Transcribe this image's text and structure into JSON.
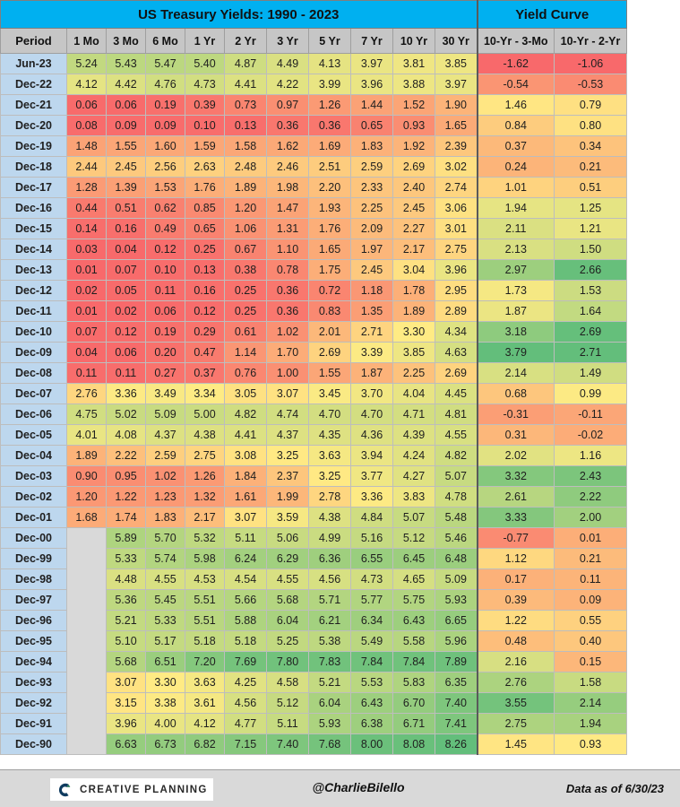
{
  "header": {
    "title": "US Treasury Yields: 1990 - 2023",
    "curve_title": "Yield Curve"
  },
  "columns": [
    "Period",
    "1 Mo",
    "3 Mo",
    "6 Mo",
    "1 Yr",
    "2 Yr",
    "3 Yr",
    "5 Yr",
    "7 Yr",
    "10 Yr",
    "30 Yr",
    "10-Yr - 3-Mo",
    "10-Yr - 2-Yr"
  ],
  "chart_data": {
    "type": "table",
    "title": "US Treasury Yields: 1990 - 2023",
    "columns": [
      "Period",
      "1 Mo",
      "3 Mo",
      "6 Mo",
      "1 Yr",
      "2 Yr",
      "3 Yr",
      "5 Yr",
      "7 Yr",
      "10 Yr",
      "30 Yr",
      "10-Yr - 3-Mo",
      "10-Yr - 2-Yr"
    ],
    "rows": [
      [
        "Jun-23",
        "5.24",
        "5.43",
        "5.47",
        "5.40",
        "4.87",
        "4.49",
        "4.13",
        "3.97",
        "3.81",
        "3.85",
        "-1.62",
        "-1.06"
      ],
      [
        "Dec-22",
        "4.12",
        "4.42",
        "4.76",
        "4.73",
        "4.41",
        "4.22",
        "3.99",
        "3.96",
        "3.88",
        "3.97",
        "-0.54",
        "-0.53"
      ],
      [
        "Dec-21",
        "0.06",
        "0.06",
        "0.19",
        "0.39",
        "0.73",
        "0.97",
        "1.26",
        "1.44",
        "1.52",
        "1.90",
        "1.46",
        "0.79"
      ],
      [
        "Dec-20",
        "0.08",
        "0.09",
        "0.09",
        "0.10",
        "0.13",
        "0.36",
        "0.36",
        "0.65",
        "0.93",
        "1.65",
        "0.84",
        "0.80"
      ],
      [
        "Dec-19",
        "1.48",
        "1.55",
        "1.60",
        "1.59",
        "1.58",
        "1.62",
        "1.69",
        "1.83",
        "1.92",
        "2.39",
        "0.37",
        "0.34"
      ],
      [
        "Dec-18",
        "2.44",
        "2.45",
        "2.56",
        "2.63",
        "2.48",
        "2.46",
        "2.51",
        "2.59",
        "2.69",
        "3.02",
        "0.24",
        "0.21"
      ],
      [
        "Dec-17",
        "1.28",
        "1.39",
        "1.53",
        "1.76",
        "1.89",
        "1.98",
        "2.20",
        "2.33",
        "2.40",
        "2.74",
        "1.01",
        "0.51"
      ],
      [
        "Dec-16",
        "0.44",
        "0.51",
        "0.62",
        "0.85",
        "1.20",
        "1.47",
        "1.93",
        "2.25",
        "2.45",
        "3.06",
        "1.94",
        "1.25"
      ],
      [
        "Dec-15",
        "0.14",
        "0.16",
        "0.49",
        "0.65",
        "1.06",
        "1.31",
        "1.76",
        "2.09",
        "2.27",
        "3.01",
        "2.11",
        "1.21"
      ],
      [
        "Dec-14",
        "0.03",
        "0.04",
        "0.12",
        "0.25",
        "0.67",
        "1.10",
        "1.65",
        "1.97",
        "2.17",
        "2.75",
        "2.13",
        "1.50"
      ],
      [
        "Dec-13",
        "0.01",
        "0.07",
        "0.10",
        "0.13",
        "0.38",
        "0.78",
        "1.75",
        "2.45",
        "3.04",
        "3.96",
        "2.97",
        "2.66"
      ],
      [
        "Dec-12",
        "0.02",
        "0.05",
        "0.11",
        "0.16",
        "0.25",
        "0.36",
        "0.72",
        "1.18",
        "1.78",
        "2.95",
        "1.73",
        "1.53"
      ],
      [
        "Dec-11",
        "0.01",
        "0.02",
        "0.06",
        "0.12",
        "0.25",
        "0.36",
        "0.83",
        "1.35",
        "1.89",
        "2.89",
        "1.87",
        "1.64"
      ],
      [
        "Dec-10",
        "0.07",
        "0.12",
        "0.19",
        "0.29",
        "0.61",
        "1.02",
        "2.01",
        "2.71",
        "3.30",
        "4.34",
        "3.18",
        "2.69"
      ],
      [
        "Dec-09",
        "0.04",
        "0.06",
        "0.20",
        "0.47",
        "1.14",
        "1.70",
        "2.69",
        "3.39",
        "3.85",
        "4.63",
        "3.79",
        "2.71"
      ],
      [
        "Dec-08",
        "0.11",
        "0.11",
        "0.27",
        "0.37",
        "0.76",
        "1.00",
        "1.55",
        "1.87",
        "2.25",
        "2.69",
        "2.14",
        "1.49"
      ],
      [
        "Dec-07",
        "2.76",
        "3.36",
        "3.49",
        "3.34",
        "3.05",
        "3.07",
        "3.45",
        "3.70",
        "4.04",
        "4.45",
        "0.68",
        "0.99"
      ],
      [
        "Dec-06",
        "4.75",
        "5.02",
        "5.09",
        "5.00",
        "4.82",
        "4.74",
        "4.70",
        "4.70",
        "4.71",
        "4.81",
        "-0.31",
        "-0.11"
      ],
      [
        "Dec-05",
        "4.01",
        "4.08",
        "4.37",
        "4.38",
        "4.41",
        "4.37",
        "4.35",
        "4.36",
        "4.39",
        "4.55",
        "0.31",
        "-0.02"
      ],
      [
        "Dec-04",
        "1.89",
        "2.22",
        "2.59",
        "2.75",
        "3.08",
        "3.25",
        "3.63",
        "3.94",
        "4.24",
        "4.82",
        "2.02",
        "1.16"
      ],
      [
        "Dec-03",
        "0.90",
        "0.95",
        "1.02",
        "1.26",
        "1.84",
        "2.37",
        "3.25",
        "3.77",
        "4.27",
        "5.07",
        "3.32",
        "2.43"
      ],
      [
        "Dec-02",
        "1.20",
        "1.22",
        "1.23",
        "1.32",
        "1.61",
        "1.99",
        "2.78",
        "3.36",
        "3.83",
        "4.78",
        "2.61",
        "2.22"
      ],
      [
        "Dec-01",
        "1.68",
        "1.74",
        "1.83",
        "2.17",
        "3.07",
        "3.59",
        "4.38",
        "4.84",
        "5.07",
        "5.48",
        "3.33",
        "2.00"
      ],
      [
        "Dec-00",
        "",
        "5.89",
        "5.70",
        "5.32",
        "5.11",
        "5.06",
        "4.99",
        "5.16",
        "5.12",
        "5.46",
        "-0.77",
        "0.01"
      ],
      [
        "Dec-99",
        "",
        "5.33",
        "5.74",
        "5.98",
        "6.24",
        "6.29",
        "6.36",
        "6.55",
        "6.45",
        "6.48",
        "1.12",
        "0.21"
      ],
      [
        "Dec-98",
        "",
        "4.48",
        "4.55",
        "4.53",
        "4.54",
        "4.55",
        "4.56",
        "4.73",
        "4.65",
        "5.09",
        "0.17",
        "0.11"
      ],
      [
        "Dec-97",
        "",
        "5.36",
        "5.45",
        "5.51",
        "5.66",
        "5.68",
        "5.71",
        "5.77",
        "5.75",
        "5.93",
        "0.39",
        "0.09"
      ],
      [
        "Dec-96",
        "",
        "5.21",
        "5.33",
        "5.51",
        "5.88",
        "6.04",
        "6.21",
        "6.34",
        "6.43",
        "6.65",
        "1.22",
        "0.55"
      ],
      [
        "Dec-95",
        "",
        "5.10",
        "5.17",
        "5.18",
        "5.18",
        "5.25",
        "5.38",
        "5.49",
        "5.58",
        "5.96",
        "0.48",
        "0.40"
      ],
      [
        "Dec-94",
        "",
        "5.68",
        "6.51",
        "7.20",
        "7.69",
        "7.80",
        "7.83",
        "7.84",
        "7.84",
        "7.89",
        "2.16",
        "0.15"
      ],
      [
        "Dec-93",
        "",
        "3.07",
        "3.30",
        "3.63",
        "4.25",
        "4.58",
        "5.21",
        "5.53",
        "5.83",
        "6.35",
        "2.76",
        "1.58"
      ],
      [
        "Dec-92",
        "",
        "3.15",
        "3.38",
        "3.61",
        "4.56",
        "5.12",
        "6.04",
        "6.43",
        "6.70",
        "7.40",
        "3.55",
        "2.14"
      ],
      [
        "Dec-91",
        "",
        "3.96",
        "4.00",
        "4.12",
        "4.77",
        "5.11",
        "5.93",
        "6.38",
        "6.71",
        "7.41",
        "2.75",
        "1.94"
      ],
      [
        "Dec-90",
        "",
        "6.63",
        "6.73",
        "6.82",
        "7.15",
        "7.40",
        "7.68",
        "8.00",
        "8.08",
        "8.26",
        "1.45",
        "0.93"
      ]
    ],
    "colors": {
      "low": "#f8696b",
      "mid": "#ffeb84",
      "high": "#63be7b",
      "empty": "#d9d9d9"
    }
  },
  "footer": {
    "logo_text": "CREATIVE PLANNING",
    "handle": "@CharlieBilello",
    "as_of": "Data as of 6/30/23"
  }
}
